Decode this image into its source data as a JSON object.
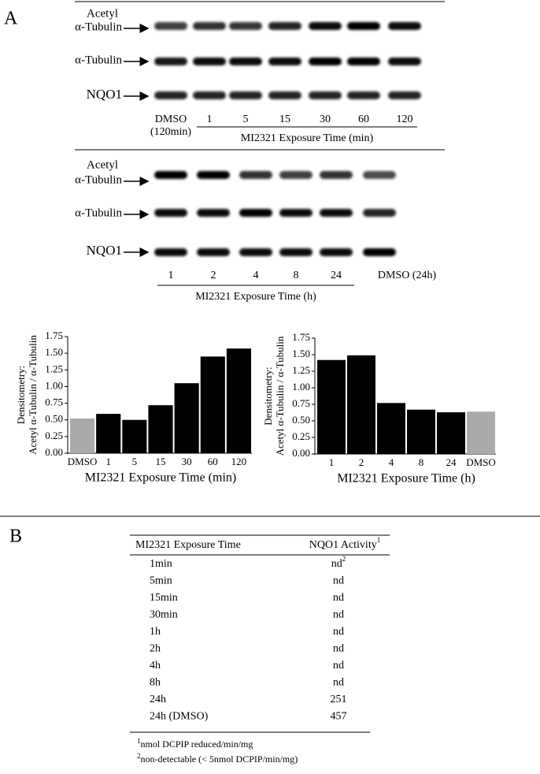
{
  "panel_a": {
    "label": "A",
    "blot_1": {
      "rows": [
        [
          "Acetyl",
          "α-Tubulin"
        ],
        [
          "α-Tubulin"
        ],
        [
          "NQO1"
        ]
      ],
      "lanes": [
        "DMSO",
        "1",
        "5",
        "15",
        "30",
        "60",
        "120"
      ],
      "dmso_note": "(120min)",
      "xlabel": "MI2321 Exposure Time (min)"
    },
    "blot_2": {
      "rows": [
        [
          "Acetyl",
          "α-Tubulin"
        ],
        [
          "α-Tubulin"
        ],
        [
          "NQO1"
        ]
      ],
      "lanes": [
        "1",
        "2",
        "4",
        "8",
        "24",
        "DMSO (24h)"
      ],
      "xlabel": "MI2321 Exposure Time (h)"
    }
  },
  "chart_data": [
    {
      "type": "bar",
      "categories": [
        "DMSO",
        "1",
        "5",
        "15",
        "30",
        "60",
        "120"
      ],
      "values": [
        0.52,
        0.59,
        0.5,
        0.72,
        1.05,
        1.45,
        1.57
      ],
      "colors": [
        "#aaaaaa",
        "#000000",
        "#000000",
        "#000000",
        "#000000",
        "#000000",
        "#000000"
      ],
      "ylim": [
        0,
        1.75
      ],
      "yticks": [
        {
          "value": 0,
          "label": "0.00"
        },
        {
          "value": 0.25,
          "label": "0.25"
        },
        {
          "value": 0.5,
          "label": "0.50"
        },
        {
          "value": 0.75,
          "label": "0.75"
        },
        {
          "value": 1,
          "label": "1.00"
        },
        {
          "value": 1.25,
          "label": "1.25"
        },
        {
          "value": 1.5,
          "label": "1.50"
        },
        {
          "value": 1.75,
          "label": "1.75"
        }
      ],
      "ylabel": [
        "Densitometry:",
        "Acetyl α-Tubulin / α-Tubulin"
      ],
      "xlabel": "MI2321 Exposure Time (min)",
      "grid": false
    },
    {
      "type": "bar",
      "categories": [
        "1",
        "2",
        "4",
        "8",
        "24",
        "DMSO"
      ],
      "values": [
        1.42,
        1.49,
        0.77,
        0.67,
        0.63,
        0.64
      ],
      "colors": [
        "#000000",
        "#000000",
        "#000000",
        "#000000",
        "#000000",
        "#aaaaaa"
      ],
      "ylim": [
        0,
        1.75
      ],
      "yticks": [
        {
          "value": 0,
          "label": "0.00"
        },
        {
          "value": 0.25,
          "label": "0.25"
        },
        {
          "value": 0.5,
          "label": "0.50"
        },
        {
          "value": 0.75,
          "label": "0.75"
        },
        {
          "value": 1,
          "label": "1.00"
        },
        {
          "value": 1.25,
          "label": "1.25"
        },
        {
          "value": 1.5,
          "label": "1.50"
        },
        {
          "value": 1.75,
          "label": "1.75"
        }
      ],
      "ylabel": [
        "Densitometry:",
        "Acetyl α-Tubulin / α-Tubulin"
      ],
      "xlabel": "MI2321 Exposure Time (h)",
      "grid": false
    }
  ],
  "panel_b": {
    "label": "B",
    "table": {
      "header": [
        "MI2321 Exposure Time",
        {
          "text": "NQO1 Activity",
          "sup": "1"
        }
      ],
      "rows": [
        [
          "1min",
          {
            "text": "nd",
            "sup": "2"
          }
        ],
        [
          "5min",
          "nd"
        ],
        [
          "15min",
          "nd"
        ],
        [
          "30min",
          "nd"
        ],
        [
          "1h",
          "nd"
        ],
        [
          "2h",
          "nd"
        ],
        [
          "4h",
          "nd"
        ],
        [
          "8h",
          "nd"
        ],
        [
          "24h",
          251
        ],
        [
          "24h (DMSO)",
          457
        ]
      ],
      "footnotes": [
        {
          "sup": "1",
          "text": "nmol DCPIP reduced/min/mg"
        },
        {
          "sup": "2",
          "text": "non-detectable (< 5nmol DCPIP/min/mg)"
        }
      ]
    }
  }
}
